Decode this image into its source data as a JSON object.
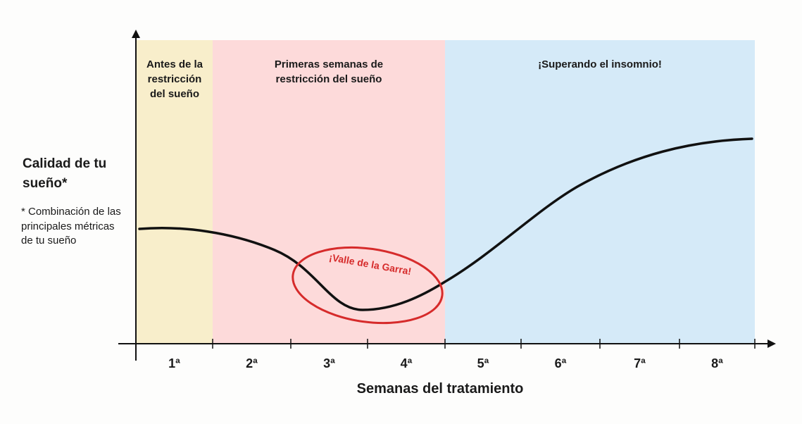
{
  "y_label": [
    "Calidad de tu",
    "sueño*"
  ],
  "y_note": [
    "* Combinación de las",
    "principales métricas",
    "de tu sueño"
  ],
  "x_label": "Semanas del tratamiento",
  "weeks": [
    "1ª",
    "2ª",
    "3ª",
    "4ª",
    "5ª",
    "6ª",
    "7ª",
    "8ª"
  ],
  "phases": [
    {
      "lines": [
        "Antes de la",
        "restricción",
        "del sueño"
      ]
    },
    {
      "lines": [
        "Primeras semanas de",
        "restricción del sueño"
      ]
    },
    {
      "lines": [
        "¡Superando el insomnio!"
      ]
    }
  ],
  "annotation": "¡Valle de la Garra!"
}
